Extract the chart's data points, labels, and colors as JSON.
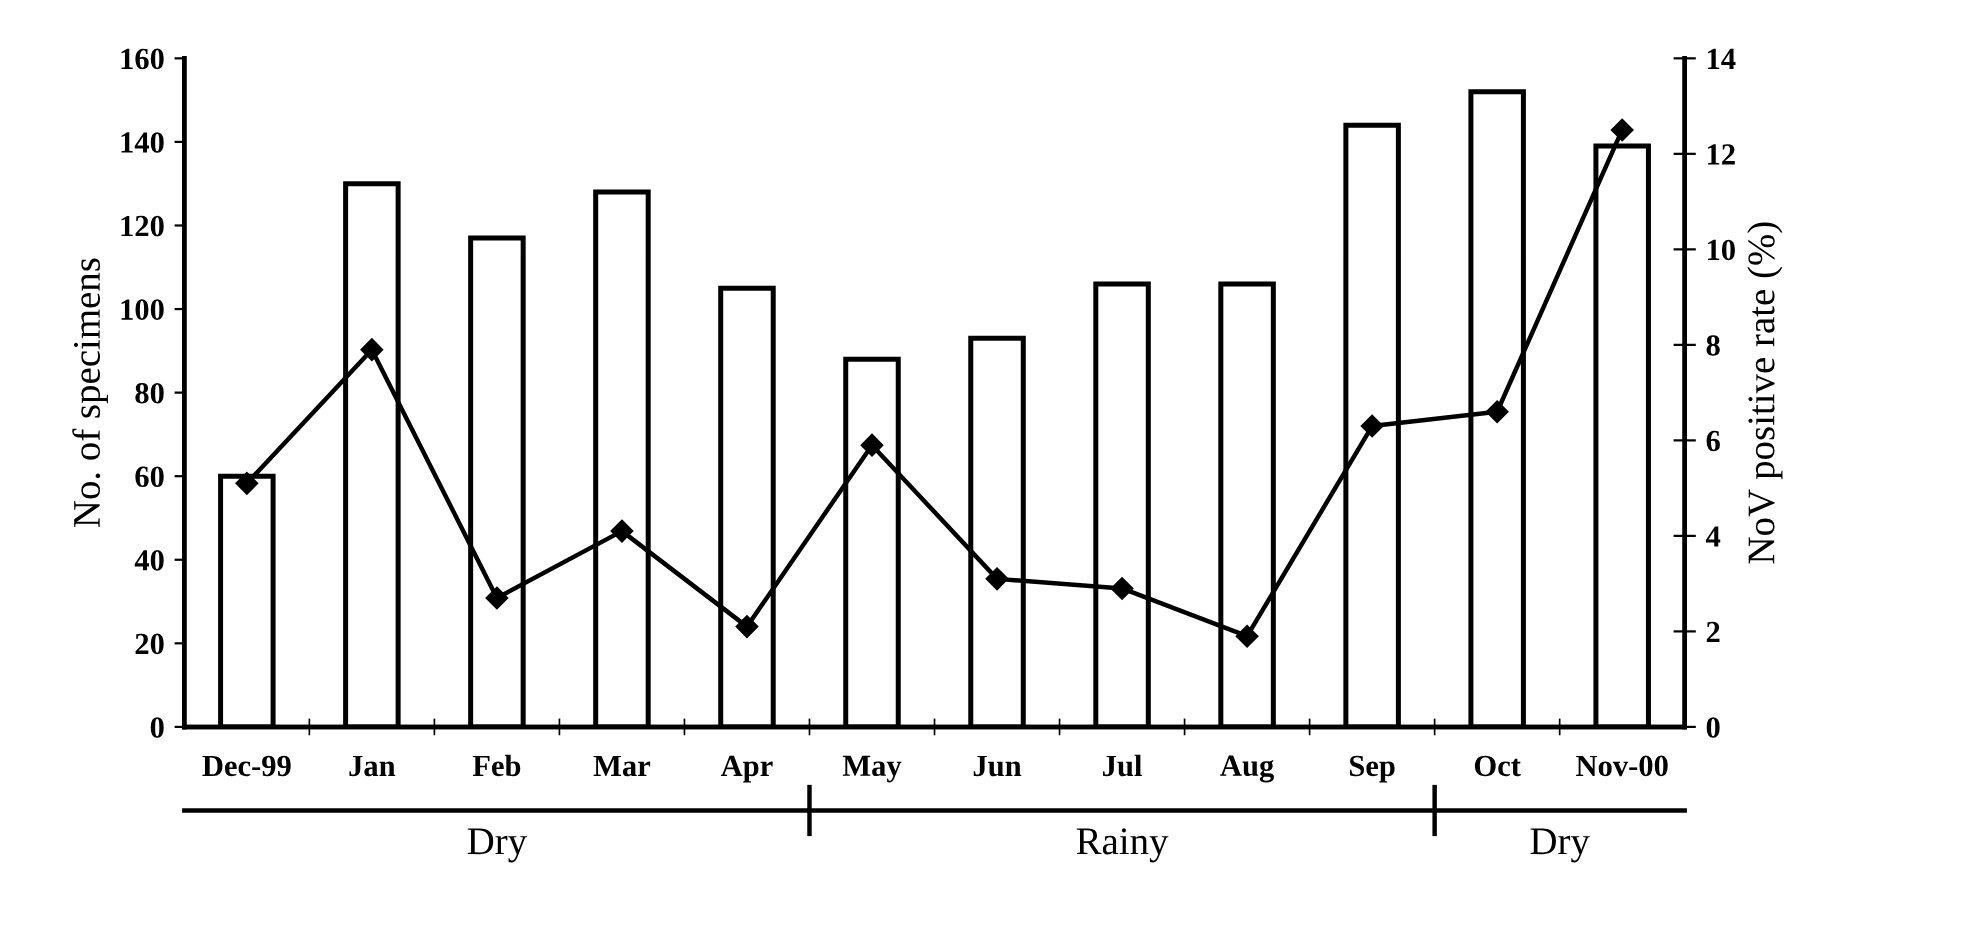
{
  "chart_data": {
    "type": "bar",
    "categories": [
      "Dec-99",
      "Jan",
      "Feb",
      "Mar",
      "Apr",
      "May",
      "Jun",
      "Jul",
      "Aug",
      "Sep",
      "Oct",
      "Nov-00"
    ],
    "series": [
      {
        "color": "#ffffff",
        "values": [
          60,
          130,
          117,
          128,
          105,
          88,
          93,
          106,
          106,
          144,
          152,
          139
        ]
      },
      {
        "type": "line",
        "axis": "y2",
        "color": "#000000",
        "values": [
          5.1,
          7.9,
          2.7,
          4.1,
          2.1,
          5.9,
          3.1,
          2.9,
          1.9,
          6.3,
          6.6,
          12.5
        ]
      }
    ],
    "ylabel": "No. of specimens",
    "y2label": "NoV positive rate (%)",
    "ylim": [
      0,
      160
    ],
    "yticks": [
      0,
      20,
      40,
      60,
      80,
      100,
      120,
      140,
      160
    ],
    "y2lim": [
      0,
      14
    ],
    "y2ticks": [
      0,
      2,
      4,
      6,
      8,
      10,
      12,
      14
    ],
    "marker": "diamond",
    "line_style": "solid",
    "grid": false,
    "legend": false,
    "annotations": [
      "Dry",
      "Rainy",
      "Dry"
    ]
  }
}
